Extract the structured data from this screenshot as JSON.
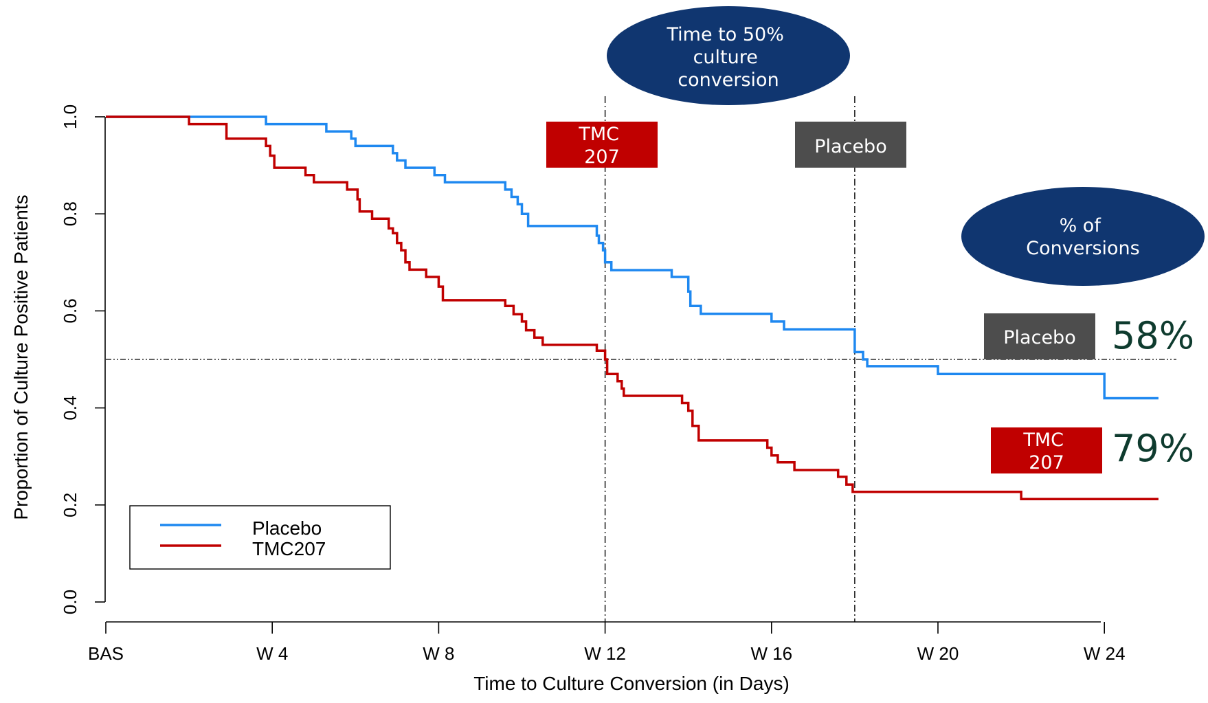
{
  "chart_data": {
    "type": "line",
    "step": true,
    "xlabel": "Time to Culture Conversion (in Days)",
    "ylabel": "Proportion of Culture Positive Patients",
    "xlim": [
      0,
      25.3
    ],
    "ylim": [
      0,
      1.0
    ],
    "x_ticks": [
      {
        "value": 0,
        "label": "BAS"
      },
      {
        "value": 4,
        "label": "W 4"
      },
      {
        "value": 8,
        "label": "W 8"
      },
      {
        "value": 12,
        "label": "W 12"
      },
      {
        "value": 16,
        "label": "W 16"
      },
      {
        "value": 20,
        "label": "W 20"
      },
      {
        "value": 24,
        "label": "W 24"
      }
    ],
    "y_ticks": [
      {
        "value": 0.0,
        "label": "0.0"
      },
      {
        "value": 0.2,
        "label": "0.2"
      },
      {
        "value": 0.4,
        "label": "0.4"
      },
      {
        "value": 0.6,
        "label": "0.6"
      },
      {
        "value": 0.8,
        "label": "0.8"
      },
      {
        "value": 1.0,
        "label": "1.0"
      }
    ],
    "reference_lines": {
      "horizontal_y": 0.5,
      "vertical_x": [
        12,
        18
      ]
    },
    "legend_position": "bottom-left",
    "series": [
      {
        "name": "Placebo",
        "color": "#1e88f0",
        "points": [
          [
            0,
            1.0
          ],
          [
            2.0,
            1.0
          ],
          [
            3.85,
            0.985
          ],
          [
            5.3,
            0.97
          ],
          [
            5.9,
            0.955
          ],
          [
            6.0,
            0.94
          ],
          [
            6.9,
            0.925
          ],
          [
            7.0,
            0.91
          ],
          [
            7.2,
            0.895
          ],
          [
            7.9,
            0.88
          ],
          [
            8.15,
            0.865
          ],
          [
            9.6,
            0.85
          ],
          [
            9.75,
            0.835
          ],
          [
            9.9,
            0.82
          ],
          [
            10.0,
            0.8
          ],
          [
            10.15,
            0.775
          ],
          [
            11.8,
            0.755
          ],
          [
            11.85,
            0.74
          ],
          [
            11.95,
            0.725
          ],
          [
            12.0,
            0.7
          ],
          [
            12.15,
            0.684
          ],
          [
            13.6,
            0.67
          ],
          [
            14.0,
            0.64
          ],
          [
            14.05,
            0.61
          ],
          [
            14.3,
            0.594
          ],
          [
            16.0,
            0.578
          ],
          [
            16.3,
            0.562
          ],
          [
            18.0,
            0.515
          ],
          [
            18.2,
            0.5
          ],
          [
            18.3,
            0.486
          ],
          [
            20.0,
            0.47
          ],
          [
            24.0,
            0.42
          ],
          [
            25.3,
            0.42
          ]
        ]
      },
      {
        "name": "TMC207",
        "color": "#c00000",
        "points": [
          [
            0,
            1.0
          ],
          [
            2.0,
            0.985
          ],
          [
            2.9,
            0.955
          ],
          [
            3.85,
            0.94
          ],
          [
            3.95,
            0.92
          ],
          [
            4.05,
            0.895
          ],
          [
            4.8,
            0.88
          ],
          [
            5.0,
            0.865
          ],
          [
            5.8,
            0.85
          ],
          [
            6.05,
            0.83
          ],
          [
            6.1,
            0.805
          ],
          [
            6.4,
            0.79
          ],
          [
            6.8,
            0.77
          ],
          [
            6.9,
            0.76
          ],
          [
            7.0,
            0.74
          ],
          [
            7.1,
            0.725
          ],
          [
            7.2,
            0.7
          ],
          [
            7.3,
            0.685
          ],
          [
            7.7,
            0.67
          ],
          [
            8.0,
            0.65
          ],
          [
            8.1,
            0.622
          ],
          [
            9.6,
            0.61
          ],
          [
            9.8,
            0.593
          ],
          [
            10.0,
            0.578
          ],
          [
            10.1,
            0.56
          ],
          [
            10.3,
            0.545
          ],
          [
            10.5,
            0.53
          ],
          [
            11.8,
            0.518
          ],
          [
            12.0,
            0.5
          ],
          [
            12.05,
            0.47
          ],
          [
            12.3,
            0.455
          ],
          [
            12.4,
            0.44
          ],
          [
            12.45,
            0.425
          ],
          [
            13.85,
            0.41
          ],
          [
            14.0,
            0.394
          ],
          [
            14.1,
            0.363
          ],
          [
            14.25,
            0.333
          ],
          [
            15.9,
            0.318
          ],
          [
            16.0,
            0.302
          ],
          [
            16.15,
            0.288
          ],
          [
            16.55,
            0.272
          ],
          [
            17.6,
            0.258
          ],
          [
            17.8,
            0.242
          ],
          [
            17.95,
            0.227
          ],
          [
            22.0,
            0.212
          ],
          [
            25.3,
            0.212
          ]
        ]
      }
    ],
    "annotations": {
      "time_to_50_title": [
        "Time to 50%",
        "culture",
        "conversion"
      ],
      "pct_conversions_title": [
        "% of",
        "Conversions"
      ],
      "tmc_box_top": [
        "TMC",
        "207"
      ],
      "placebo_box_top": [
        "Placebo"
      ],
      "placebo_box_right": [
        "Placebo"
      ],
      "tmc_box_right": [
        "TMC",
        "207"
      ],
      "placebo_pct": "58%",
      "tmc_pct": "79%"
    },
    "colors": {
      "ellipse": "#103670",
      "tmc_box": "#c00000",
      "placebo_box": "#4d4d4d",
      "pct_text": "#0e3b2e"
    }
  }
}
